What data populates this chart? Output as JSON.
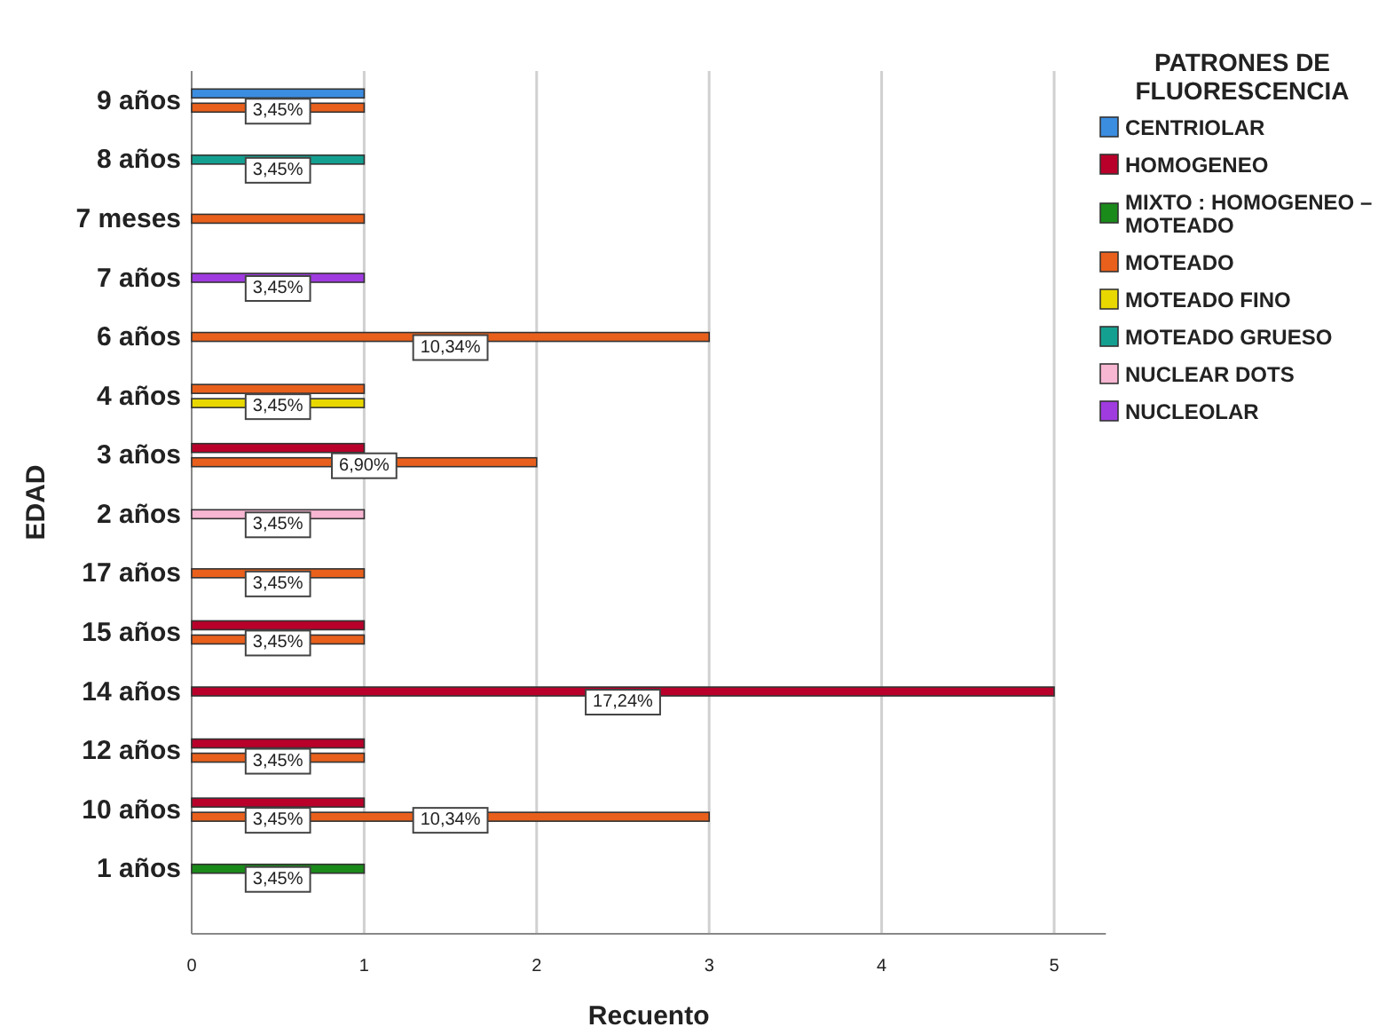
{
  "chart_data": {
    "type": "bar",
    "orientation": "horizontal",
    "xlabel": "Recuento",
    "ylabel": "EDAD",
    "legend_title": "PATRONES DE FLUORESCENCIA",
    "legend": "right",
    "grid": "x",
    "categories": [
      "9 años",
      "8 años",
      "7 meses",
      "7 años",
      "6 años",
      "4 años",
      "3 años",
      "2 años",
      "17 años",
      "15 años",
      "14 años",
      "12 años",
      "10 años",
      "1 años"
    ],
    "xlim": [
      0,
      5.3
    ],
    "xticks": [
      0,
      1,
      2,
      3,
      4,
      5
    ],
    "series": [
      {
        "name": "CENTRIOLAR",
        "color": "#3b8de0",
        "values": [
          1,
          null,
          null,
          null,
          null,
          null,
          null,
          null,
          null,
          null,
          null,
          null,
          null,
          null
        ]
      },
      {
        "name": "HOMOGENEO",
        "color": "#b8002a",
        "values": [
          null,
          null,
          null,
          null,
          null,
          null,
          1,
          null,
          null,
          1,
          5,
          1,
          1,
          null
        ]
      },
      {
        "name": "MIXTO : HOMOGENEO – MOTEADO",
        "color": "#1a8a1a",
        "values": [
          null,
          null,
          null,
          null,
          null,
          null,
          null,
          null,
          null,
          null,
          null,
          null,
          null,
          1
        ]
      },
      {
        "name": "MOTEADO",
        "color": "#e8601c",
        "values": [
          1,
          null,
          1,
          null,
          3,
          1,
          2,
          null,
          1,
          1,
          null,
          1,
          3,
          null
        ]
      },
      {
        "name": "MOTEADO FINO",
        "color": "#e8d800",
        "values": [
          null,
          null,
          null,
          null,
          null,
          1,
          null,
          null,
          null,
          null,
          null,
          null,
          null,
          null
        ]
      },
      {
        "name": "MOTEADO GRUESO",
        "color": "#14a090",
        "values": [
          null,
          1,
          null,
          null,
          null,
          null,
          null,
          null,
          null,
          null,
          null,
          null,
          null,
          null
        ]
      },
      {
        "name": "NUCLEAR DOTS",
        "color": "#f7b6d2",
        "values": [
          null,
          null,
          null,
          null,
          null,
          null,
          null,
          1,
          null,
          null,
          null,
          null,
          null,
          null
        ]
      },
      {
        "name": "NUCLEOLAR",
        "color": "#a03be0",
        "values": [
          null,
          null,
          null,
          1,
          null,
          null,
          null,
          null,
          null,
          null,
          null,
          null,
          null,
          null
        ]
      }
    ],
    "annotations": [
      {
        "text": "3,45%",
        "x": 0.5,
        "y": "9 años"
      },
      {
        "text": "3,45%",
        "x": 0.5,
        "y": "8 años"
      },
      {
        "text": "3,45%",
        "x": 0.5,
        "y": "7 años"
      },
      {
        "text": "10,34%",
        "x": 1.5,
        "y": "6 años"
      },
      {
        "text": "3,45%",
        "x": 0.5,
        "y": "4 años"
      },
      {
        "text": "6,90%",
        "x": 1,
        "y": "3 años"
      },
      {
        "text": "3,45%",
        "x": 0.5,
        "y": "2 años"
      },
      {
        "text": "3,45%",
        "x": 0.5,
        "y": "17 años"
      },
      {
        "text": "3,45%",
        "x": 0.5,
        "y": "15 años"
      },
      {
        "text": "17,24%",
        "x": 2.5,
        "y": "14 años"
      },
      {
        "text": "3,45%",
        "x": 0.5,
        "y": "12 años"
      },
      {
        "text": "10,34%",
        "x": 1.5,
        "y": "10 años"
      },
      {
        "text": "3,45%",
        "x": 0.5,
        "y": "10 años"
      },
      {
        "text": "3,45%",
        "x": 0.5,
        "y": "1 años"
      }
    ]
  }
}
